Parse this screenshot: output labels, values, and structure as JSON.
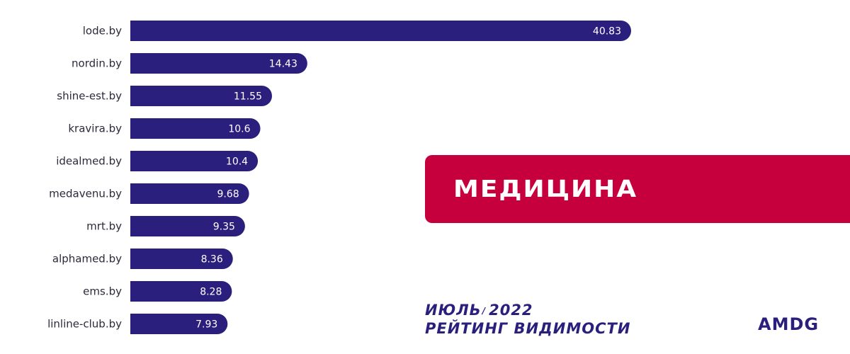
{
  "colors": {
    "bar": "#2b1f7d",
    "banner": "#c5003c",
    "accent_text": "#2b1f7d"
  },
  "banner": {
    "title": "МЕДИЦИНА"
  },
  "footer": {
    "month": "ИЮЛЬ",
    "separator": "/",
    "year": "2022",
    "subtitle": "РЕЙТИНГ ВИДИМОСТИ",
    "brand": "AMDG"
  },
  "chart_data": {
    "type": "bar",
    "orientation": "horizontal",
    "categories": [
      "lode.by",
      "nordin.by",
      "shine-est.by",
      "kravira.by",
      "idealmed.by",
      "medavenu.by",
      "mrt.by",
      "alphamed.by",
      "ems.by",
      "linline-club.by"
    ],
    "values": [
      40.83,
      14.43,
      11.55,
      10.6,
      10.4,
      9.68,
      9.35,
      8.36,
      8.28,
      7.93
    ],
    "value_labels": [
      "40.83",
      "14.43",
      "11.55",
      "10.6",
      "10.4",
      "9.68",
      "9.35",
      "8.36",
      "8.28",
      "7.93"
    ],
    "title": "",
    "xlabel": "",
    "ylabel": "",
    "xlim": [
      0,
      40.83
    ],
    "grid": false,
    "legend": "none"
  }
}
